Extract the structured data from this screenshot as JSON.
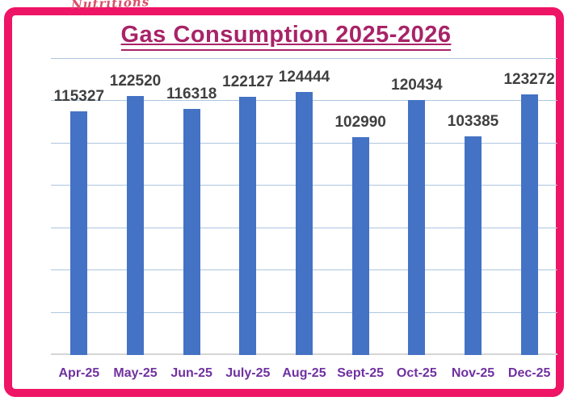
{
  "watermark": "Nutritions",
  "header": {
    "title": "Gas Consumption 2025-2026"
  },
  "chart_data": {
    "type": "bar",
    "title": "Gas Consumption 2025-2026",
    "categories": [
      "Apr-25",
      "May-25",
      "Jun-25",
      "July-25",
      "Aug-25",
      "Sept-25",
      "Oct-25",
      "Nov-25",
      "Dec-25"
    ],
    "values": [
      115327,
      122520,
      116318,
      122127,
      124444,
      102990,
      120434,
      103385,
      123272
    ],
    "xlabel": "",
    "ylabel": "",
    "ylim": [
      0,
      140000
    ],
    "grid_step": 20000,
    "grid": "horizontal",
    "legend_position": "none",
    "y_tick_labels_visible": false,
    "data_labels_visible": true
  },
  "style": {
    "frame_color": "#ee1466",
    "title_color": "#a82367",
    "bar_color": "#4472c4",
    "gridline_color": "#aec6e0",
    "value_label_color": "#404040",
    "axis_label_color": "#7030a0",
    "watermark_color": "#d85068"
  }
}
